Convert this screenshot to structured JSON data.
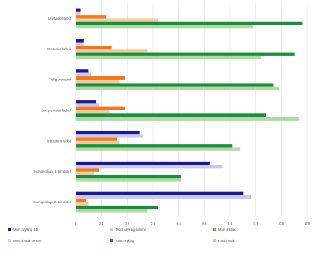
{
  "chart_data": {
    "type": "bar",
    "orientation": "horizontal",
    "categories": [
      "Lav fødselsvekt",
      "Prematur fødsel",
      "Tidlig prematur",
      "Sen prematur fødsel",
      "Intrauterin vekst",
      "Svangerskap, 1. trimester",
      "Svangerskap, 2. trimester"
    ],
    "series": [
      {
        "name": "Mors røyking 1.tr.",
        "color": "#1a1a8c",
        "values": [
          0.02,
          0.03,
          0.05,
          0.08,
          0.25,
          0.52,
          0.65
        ]
      },
      {
        "name": "Mors røyking senere",
        "color": "#c8c8f0",
        "values": [
          0.02,
          0.03,
          0.06,
          0.09,
          0.26,
          0.57,
          0.68
        ]
      },
      {
        "name": "Mors inntak",
        "color": "#f07820",
        "values": [
          0.12,
          0.14,
          0.19,
          0.19,
          0.16,
          0.09,
          0.04
        ]
      },
      {
        "name": "Mors inntak senere",
        "color": "#f5c8a0",
        "values": [
          0.32,
          0.28,
          0.17,
          0.13,
          0.17,
          0.07,
          0.05
        ]
      },
      {
        "name": "Fars røyking",
        "color": "#1e8c3c",
        "values": [
          0.88,
          0.85,
          0.77,
          0.74,
          0.61,
          0.41,
          0.32
        ]
      },
      {
        "name": "Fars inntak",
        "color": "#a8dca0",
        "values": [
          0.69,
          0.72,
          0.79,
          0.87,
          0.64,
          0.41,
          0.28
        ]
      }
    ],
    "legend": [
      "Mors røyking 1.tr.",
      "Mors røyking senere",
      "Mors inntak",
      "Mors inntak senere",
      "Fars røyking",
      "Fars inntak"
    ],
    "xticks": [
      "0",
      "0,1",
      "0,2",
      "0,3",
      "0,4",
      "0,5",
      "0,6",
      "0,7",
      "0,8",
      "0,9"
    ],
    "xlim": [
      0,
      0.9
    ],
    "grid": true,
    "legend_position": "bottom"
  }
}
